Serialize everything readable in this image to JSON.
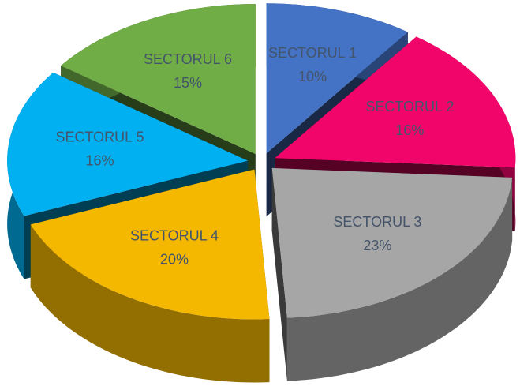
{
  "chart_data": {
    "type": "pie",
    "categories": [
      "SECTORUL 1",
      "SECTORUL 2",
      "SECTORUL 3",
      "SECTORUL 4",
      "SECTORUL 5",
      "SECTORUL 6"
    ],
    "values": [
      10,
      16,
      23,
      20,
      16,
      15
    ],
    "value_labels": [
      "10%",
      "16%",
      "23%",
      "20%",
      "16%",
      "15%"
    ],
    "colors": [
      "#4472c4",
      "#f2056b",
      "#a6a6a6",
      "#f5b800",
      "#00b0f0",
      "#70ad47"
    ]
  }
}
